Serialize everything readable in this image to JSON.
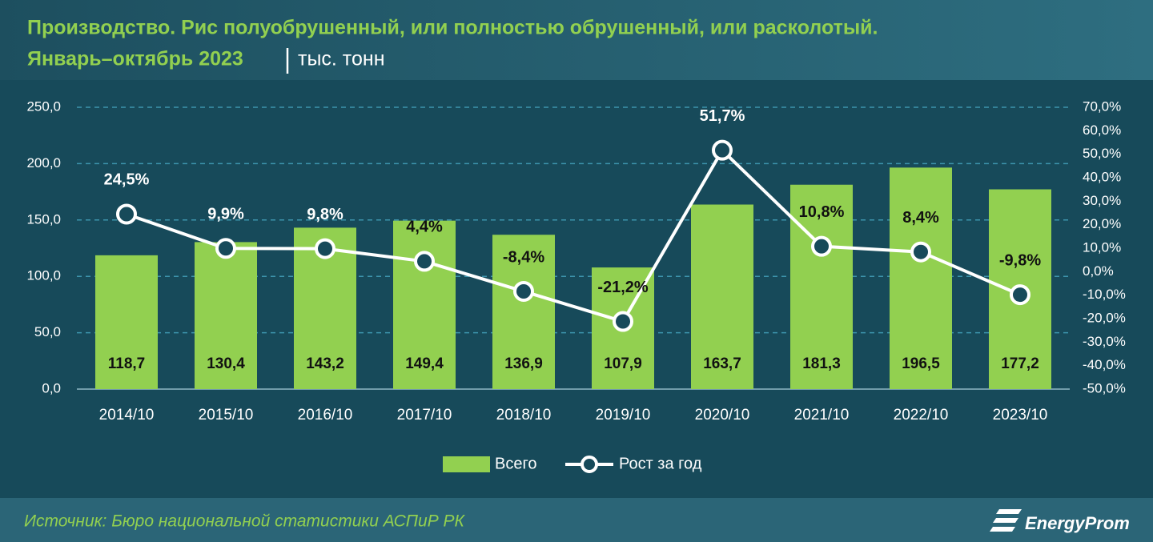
{
  "chart_data": {
    "type": "bar-line",
    "title": "Производство. Рис полуобрушенный, или полностью обрушенный, или расколотый.",
    "subtitle": "Январь–октябрь 2023",
    "unit": "тыс. тонн",
    "source": "Источник: Бюро национальной статистики АСПиР РК",
    "logo": "EnergyProm",
    "categories": [
      "2014/10",
      "2015/10",
      "2016/10",
      "2017/10",
      "2018/10",
      "2019/10",
      "2020/10",
      "2021/10",
      "2022/10",
      "2023/10"
    ],
    "series": [
      {
        "name": "Всего",
        "color": "#92d050",
        "values": [
          118.7,
          130.4,
          143.2,
          149.4,
          136.9,
          107.9,
          163.7,
          181.3,
          196.5,
          177.2
        ],
        "value_labels": [
          "118,7",
          "130,4",
          "143,2",
          "149,4",
          "136,9",
          "107,9",
          "163,7",
          "181,3",
          "196,5",
          "177,2"
        ]
      },
      {
        "name": "Рост за год",
        "color": "#ffffff",
        "axis": "y2",
        "values": [
          24.5,
          9.9,
          9.8,
          4.4,
          -8.4,
          -21.2,
          51.7,
          10.8,
          8.4,
          -9.8
        ],
        "value_labels": [
          "24,5%",
          "9,9%",
          "9,8%",
          "4,4%",
          "-8,4%",
          "-21,2%",
          "51,7%",
          "10,8%",
          "8,4%",
          "-9,8%"
        ]
      }
    ],
    "ylim": [
      0,
      250
    ],
    "yticks": [
      {
        "value": 0,
        "label": "0,0"
      },
      {
        "value": 50,
        "label": "50,0"
      },
      {
        "value": 100,
        "label": "100,0"
      },
      {
        "value": 150,
        "label": "150,0"
      },
      {
        "value": 200,
        "label": "200,0"
      },
      {
        "value": 250,
        "label": "250,0"
      }
    ],
    "y2lim": [
      -50,
      70
    ],
    "y2ticks": [
      {
        "value": -50,
        "label": "-50,0%"
      },
      {
        "value": -40,
        "label": "-40,0%"
      },
      {
        "value": -30,
        "label": "-30,0%"
      },
      {
        "value": -20,
        "label": "-20,0%"
      },
      {
        "value": -10,
        "label": "-10,0%"
      },
      {
        "value": 0,
        "label": "0,0%"
      },
      {
        "value": 10,
        "label": "10,0%"
      },
      {
        "value": 20,
        "label": "20,0%"
      },
      {
        "value": 30,
        "label": "30,0%"
      },
      {
        "value": 40,
        "label": "40,0%"
      },
      {
        "value": 50,
        "label": "50,0%"
      },
      {
        "value": 60,
        "label": "60,0%"
      },
      {
        "value": 70,
        "label": "70,0%"
      }
    ],
    "grid": true
  }
}
